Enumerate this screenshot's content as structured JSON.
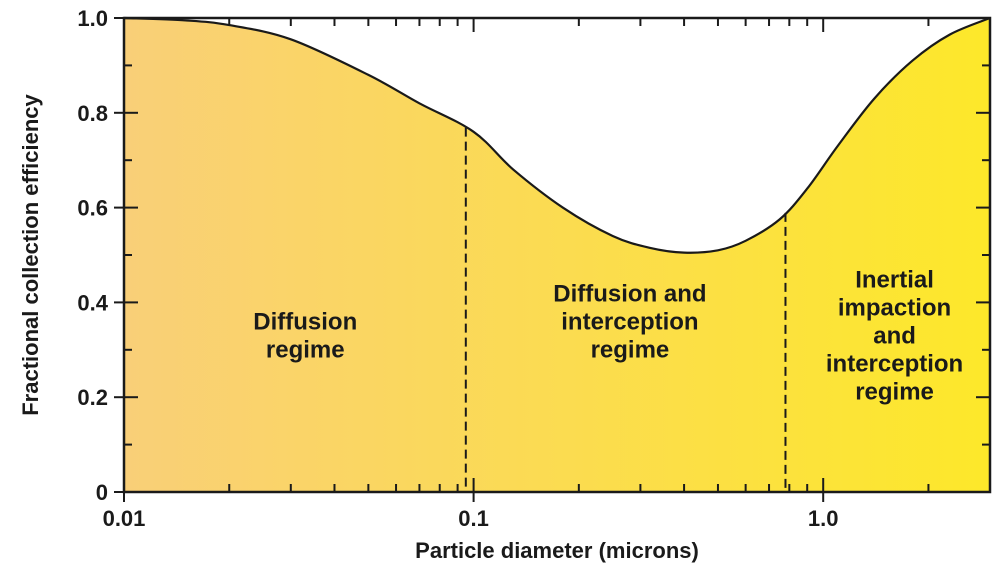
{
  "chart_data": {
    "type": "area",
    "xscale": "log",
    "xlabel": "Particle diameter (microns)",
    "ylabel": "Fractional collection efficiency",
    "xlim": [
      0.01,
      3.0
    ],
    "ylim": [
      0,
      1.0
    ],
    "x_ticks": [
      {
        "value": 0.01,
        "label": "0.01"
      },
      {
        "value": 0.1,
        "label": "0.1"
      },
      {
        "value": 1.0,
        "label": "1.0"
      }
    ],
    "y_ticks": [
      {
        "value": 0,
        "label": "0"
      },
      {
        "value": 0.2,
        "label": "0.2"
      },
      {
        "value": 0.4,
        "label": "0.4"
      },
      {
        "value": 0.6,
        "label": "0.6"
      },
      {
        "value": 0.8,
        "label": "0.8"
      },
      {
        "value": 1.0,
        "label": "1.0"
      }
    ],
    "series": [
      {
        "x": [
          0.01,
          0.015,
          0.02,
          0.03,
          0.05,
          0.07,
          0.1,
          0.13,
          0.18,
          0.25,
          0.32,
          0.4,
          0.5,
          0.6,
          0.75,
          0.9,
          1.1,
          1.4,
          1.8,
          2.3,
          3.0
        ],
        "values": [
          1.0,
          0.995,
          0.985,
          0.955,
          0.88,
          0.82,
          0.76,
          0.68,
          0.6,
          0.54,
          0.515,
          0.505,
          0.51,
          0.53,
          0.575,
          0.64,
          0.73,
          0.83,
          0.91,
          0.965,
          1.0
        ]
      }
    ],
    "boundaries": [
      0.095,
      0.78
    ],
    "regions": [
      {
        "lines": [
          "Diffusion",
          "regime"
        ],
        "x": 0.033,
        "y": 0.33
      },
      {
        "lines": [
          "Diffusion and",
          "interception",
          "regime"
        ],
        "x": 0.28,
        "y": 0.36
      },
      {
        "lines": [
          "Inertial",
          "impaction",
          "and",
          "interception",
          "regime"
        ],
        "x": 1.6,
        "y": 0.33
      }
    ],
    "colors": {
      "fill_left": "#f9cf78",
      "fill_right": "#fde82a",
      "line": "#1a1a1a"
    },
    "grid": false
  }
}
